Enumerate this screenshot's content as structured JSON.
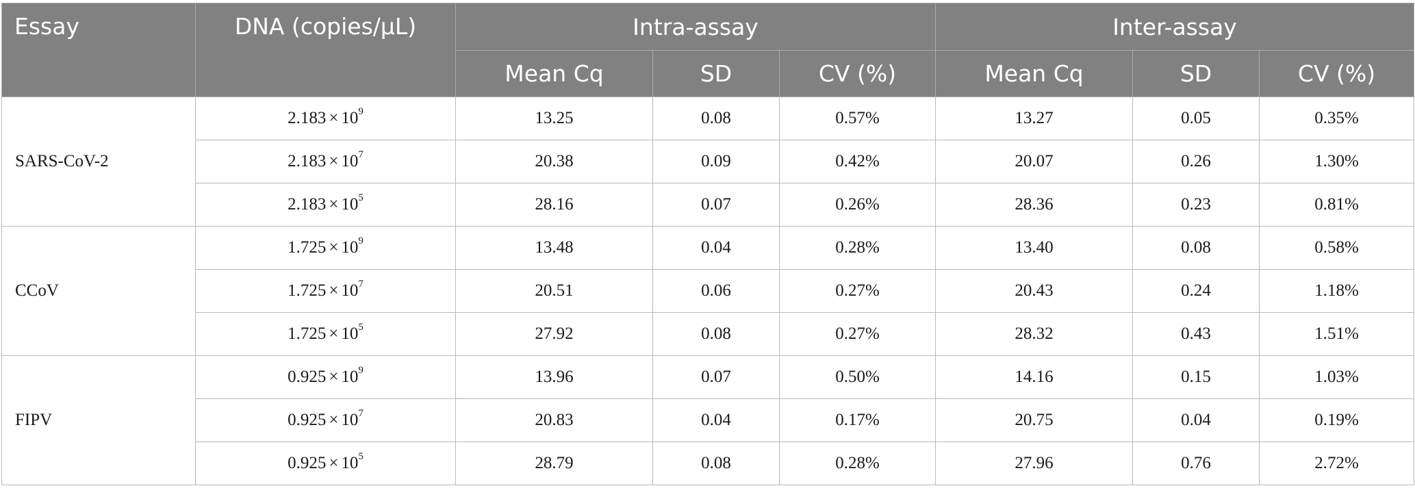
{
  "header": {
    "essay": "Essay",
    "dna": "DNA (copies/μL)",
    "intra": "Intra-assay",
    "inter": "Inter-assay",
    "mean_cq": "Mean Cq",
    "sd": "SD",
    "cv": "CV (%)"
  },
  "groups": [
    {
      "name": "SARS-CoV-2",
      "rows": [
        {
          "base": "2.183",
          "times": "×",
          "ten": "10",
          "exp": "9",
          "intra_mean": "13.25",
          "intra_sd": "0.08",
          "intra_cv": "0.57%",
          "inter_mean": "13.27",
          "inter_sd": "0.05",
          "inter_cv": "0.35%"
        },
        {
          "base": "2.183",
          "times": "×",
          "ten": "10",
          "exp": "7",
          "intra_mean": "20.38",
          "intra_sd": "0.09",
          "intra_cv": "0.42%",
          "inter_mean": "20.07",
          "inter_sd": "0.26",
          "inter_cv": "1.30%"
        },
        {
          "base": "2.183",
          "times": "×",
          "ten": "10",
          "exp": "5",
          "intra_mean": "28.16",
          "intra_sd": "0.07",
          "intra_cv": "0.26%",
          "inter_mean": "28.36",
          "inter_sd": "0.23",
          "inter_cv": "0.81%"
        }
      ]
    },
    {
      "name": "CCoV",
      "rows": [
        {
          "base": "1.725",
          "times": "×",
          "ten": "10",
          "exp": "9",
          "intra_mean": "13.48",
          "intra_sd": "0.04",
          "intra_cv": "0.28%",
          "inter_mean": "13.40",
          "inter_sd": "0.08",
          "inter_cv": "0.58%"
        },
        {
          "base": "1.725",
          "times": "×",
          "ten": "10",
          "exp": "7",
          "intra_mean": "20.51",
          "intra_sd": "0.06",
          "intra_cv": "0.27%",
          "inter_mean": "20.43",
          "inter_sd": "0.24",
          "inter_cv": "1.18%"
        },
        {
          "base": "1.725",
          "times": "×",
          "ten": "10",
          "exp": "5",
          "intra_mean": "27.92",
          "intra_sd": "0.08",
          "intra_cv": "0.27%",
          "inter_mean": "28.32",
          "inter_sd": "0.43",
          "inter_cv": "1.51%"
        }
      ]
    },
    {
      "name": "FIPV",
      "rows": [
        {
          "base": "0.925",
          "times": "×",
          "ten": "10",
          "exp": "9",
          "intra_mean": "13.96",
          "intra_sd": "0.07",
          "intra_cv": "0.50%",
          "inter_mean": "14.16",
          "inter_sd": "0.15",
          "inter_cv": "1.03%"
        },
        {
          "base": "0.925",
          "times": "×",
          "ten": "10",
          "exp": "7",
          "intra_mean": "20.83",
          "intra_sd": "0.04",
          "intra_cv": "0.17%",
          "inter_mean": "20.75",
          "inter_sd": "0.04",
          "inter_cv": "0.19%"
        },
        {
          "base": "0.925",
          "times": "×",
          "ten": "10",
          "exp": "5",
          "intra_mean": "28.79",
          "intra_sd": "0.08",
          "intra_cv": "0.28%",
          "inter_mean": "27.96",
          "inter_sd": "0.76",
          "inter_cv": "2.72%"
        }
      ]
    }
  ]
}
